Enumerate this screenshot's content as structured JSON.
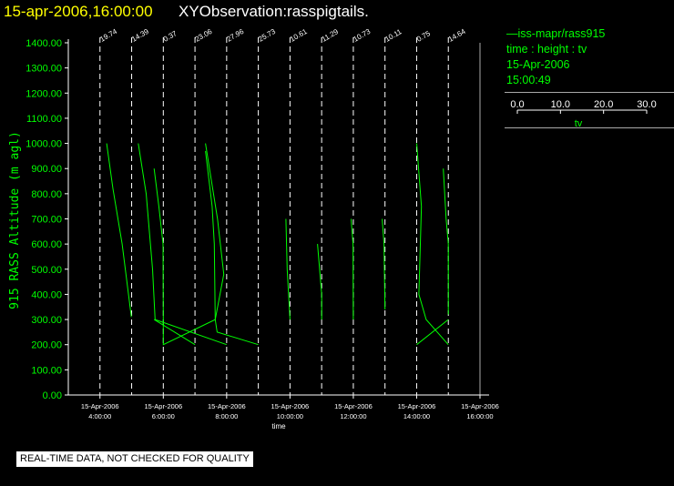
{
  "title": {
    "timestamp": "15-apr-2006,16:00:00",
    "observation": "XYObservation:rasspigtails."
  },
  "legend": {
    "series_label": "iss-mapr/rass915",
    "variables": "time : height : tv",
    "date": "15-Apr-2006",
    "time": "15:00:49",
    "tv_scale_ticks": [
      "0.0",
      "10.0",
      "20.0",
      "30.0"
    ],
    "tv_scale_label": "tv"
  },
  "quality_note": "REAL-TIME DATA, NOT CHECKED FOR QUALITY",
  "colors": {
    "background": "#000000",
    "series": "#00ff00",
    "axis": "#ffffff",
    "title_timestamp": "#ffff00",
    "title_observation": "#ffffff"
  },
  "chart_data": {
    "type": "line",
    "title": "",
    "xlabel": "time",
    "ylabel": "915 RASS Altitude (m agl)",
    "xlim": [
      3.0,
      16.0
    ],
    "ylim": [
      0,
      1400
    ],
    "y_ticks": [
      "0.00",
      "100.00",
      "200.00",
      "300.00",
      "400.00",
      "500.00",
      "600.00",
      "700.00",
      "800.00",
      "900.00",
      "1000.00",
      "1100.00",
      "1200.00",
      "1300.00",
      "1400.00"
    ],
    "x_ticks": [
      {
        "hour": 4,
        "date": "15-Apr-2006",
        "time": "4:00:00"
      },
      {
        "hour": 6,
        "date": "15-Apr-2006",
        "time": "6:00:00"
      },
      {
        "hour": 8,
        "date": "15-Apr-2006",
        "time": "8:00:00"
      },
      {
        "hour": 10,
        "date": "15-Apr-2006",
        "time": "10:00:00"
      },
      {
        "hour": 12,
        "date": "15-Apr-2006",
        "time": "12:00:00"
      },
      {
        "hour": 14,
        "date": "15-Apr-2006",
        "time": "14:00:00"
      },
      {
        "hour": 16,
        "date": "15-Apr-2006",
        "time": "16:00:00"
      }
    ],
    "profile_markers": [
      {
        "hour": 4.0,
        "label": "19.74"
      },
      {
        "hour": 5.0,
        "label": "14.39"
      },
      {
        "hour": 6.0,
        "label": "0.37"
      },
      {
        "hour": 7.0,
        "label": "23.06"
      },
      {
        "hour": 8.0,
        "label": "27.96"
      },
      {
        "hour": 9.0,
        "label": "25.73"
      },
      {
        "hour": 10.0,
        "label": "10.61"
      },
      {
        "hour": 11.0,
        "label": "11.29"
      },
      {
        "hour": 12.0,
        "label": "10.73"
      },
      {
        "hour": 13.0,
        "label": "10.11"
      },
      {
        "hour": 14.0,
        "label": "0.75"
      },
      {
        "hour": 15.0,
        "label": "14.64"
      }
    ],
    "series": [
      {
        "points": [
          [
            4.21,
            1000
          ],
          [
            4.41,
            820
          ],
          [
            4.7,
            600
          ],
          [
            4.99,
            310
          ]
        ]
      },
      {
        "points": [
          [
            5.21,
            1000
          ],
          [
            5.46,
            800
          ],
          [
            5.66,
            500
          ],
          [
            5.74,
            300
          ],
          [
            8.0,
            200
          ]
        ]
      },
      {
        "points": [
          [
            5.71,
            900
          ],
          [
            5.86,
            750
          ],
          [
            5.99,
            600
          ],
          [
            6.0,
            310
          ],
          [
            6.0,
            200
          ],
          [
            7.64,
            300
          ],
          [
            7.91,
            480
          ],
          [
            7.71,
            700
          ],
          [
            7.33,
            1000
          ]
        ]
      },
      {
        "points": [
          [
            7.33,
            970
          ],
          [
            7.54,
            750
          ],
          [
            7.61,
            600
          ],
          [
            7.64,
            300
          ],
          [
            7.7,
            250
          ],
          [
            9.0,
            200
          ]
        ]
      },
      {
        "points": [
          [
            5.71,
            300
          ],
          [
            7.0,
            200
          ]
        ]
      },
      {
        "points": [
          [
            9.87,
            700
          ],
          [
            9.91,
            500
          ],
          [
            10.0,
            300
          ]
        ]
      },
      {
        "points": [
          [
            10.87,
            600
          ],
          [
            11.0,
            400
          ],
          [
            11.0,
            300
          ]
        ]
      },
      {
        "points": [
          [
            11.93,
            700
          ],
          [
            11.99,
            600
          ],
          [
            12.0,
            300
          ]
        ]
      },
      {
        "points": [
          [
            12.91,
            700
          ],
          [
            12.97,
            600
          ],
          [
            13.0,
            340
          ]
        ]
      },
      {
        "points": [
          [
            14.0,
            1000
          ],
          [
            14.15,
            750
          ],
          [
            14.07,
            400
          ],
          [
            14.3,
            300
          ],
          [
            15.0,
            200
          ]
        ]
      },
      {
        "points": [
          [
            14.0,
            200
          ],
          [
            15.0,
            300
          ]
        ]
      },
      {
        "points": [
          [
            14.84,
            900
          ],
          [
            14.93,
            700
          ],
          [
            15.0,
            600
          ],
          [
            15.0,
            320
          ]
        ]
      }
    ]
  }
}
